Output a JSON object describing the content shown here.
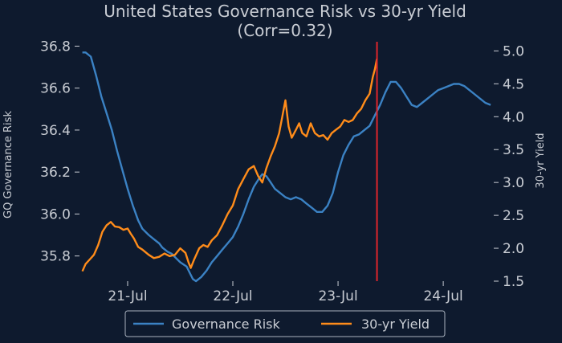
{
  "colors": {
    "background": "#0e1a2e",
    "text": "#c9cdd4",
    "governance": "#3b82c4",
    "yield": "#ff8c1a",
    "marker": "#e0252b",
    "legend_border": "#aab3bf"
  },
  "chart_data": {
    "type": "line",
    "title": "United States Governance Risk vs 30-yr Yield",
    "subtitle": "(Corr=0.32)",
    "ylabel_left": "GQ Governance Risk",
    "ylabel_right": "30-yr Yield",
    "x_ticks": [
      "21-Jul",
      "22-Jul",
      "23-Jul",
      "24-Jul"
    ],
    "x_tick_years": [
      2021,
      2022,
      2023,
      2024
    ],
    "x_range": [
      2020.55,
      2024.48
    ],
    "y_left_ticks": [
      "35.8",
      "36.0",
      "36.2",
      "36.4",
      "36.6",
      "36.8"
    ],
    "y_left_range": [
      35.68,
      36.84
    ],
    "y_right_ticks": [
      "1.5",
      "2.0",
      "2.5",
      "3.0",
      "3.5",
      "4.0",
      "4.5",
      "5.0"
    ],
    "y_right_range": [
      1.5,
      5.2
    ],
    "grid": false,
    "legend_placement": "bottom-center",
    "marker_x": 2023.37,
    "series": [
      {
        "name": "Governance Risk",
        "axis": "left",
        "points": [
          [
            2020.57,
            36.77
          ],
          [
            2020.6,
            36.77
          ],
          [
            2020.65,
            36.75
          ],
          [
            2020.7,
            36.66
          ],
          [
            2020.75,
            36.56
          ],
          [
            2020.8,
            36.48
          ],
          [
            2020.85,
            36.4
          ],
          [
            2020.9,
            36.3
          ],
          [
            2020.95,
            36.21
          ],
          [
            2021.0,
            36.12
          ],
          [
            2021.05,
            36.04
          ],
          [
            2021.1,
            35.97
          ],
          [
            2021.14,
            35.93
          ],
          [
            2021.2,
            35.9
          ],
          [
            2021.25,
            35.88
          ],
          [
            2021.3,
            35.86
          ],
          [
            2021.33,
            35.84
          ],
          [
            2021.38,
            35.82
          ],
          [
            2021.42,
            35.81
          ],
          [
            2021.46,
            35.79
          ],
          [
            2021.5,
            35.77
          ],
          [
            2021.53,
            35.76
          ],
          [
            2021.56,
            35.75
          ],
          [
            2021.59,
            35.72
          ],
          [
            2021.62,
            35.69
          ],
          [
            2021.65,
            35.68
          ],
          [
            2021.7,
            35.7
          ],
          [
            2021.75,
            35.73
          ],
          [
            2021.8,
            35.77
          ],
          [
            2021.85,
            35.8
          ],
          [
            2021.9,
            35.83
          ],
          [
            2021.95,
            35.86
          ],
          [
            2022.0,
            35.89
          ],
          [
            2022.05,
            35.94
          ],
          [
            2022.1,
            36.0
          ],
          [
            2022.15,
            36.07
          ],
          [
            2022.2,
            36.13
          ],
          [
            2022.25,
            36.17
          ],
          [
            2022.28,
            36.19
          ],
          [
            2022.32,
            36.18
          ],
          [
            2022.36,
            36.15
          ],
          [
            2022.4,
            36.12
          ],
          [
            2022.45,
            36.1
          ],
          [
            2022.5,
            36.08
          ],
          [
            2022.55,
            36.07
          ],
          [
            2022.6,
            36.08
          ],
          [
            2022.65,
            36.07
          ],
          [
            2022.7,
            36.05
          ],
          [
            2022.75,
            36.03
          ],
          [
            2022.8,
            36.01
          ],
          [
            2022.85,
            36.01
          ],
          [
            2022.9,
            36.04
          ],
          [
            2022.95,
            36.1
          ],
          [
            2023.0,
            36.2
          ],
          [
            2023.05,
            36.28
          ],
          [
            2023.1,
            36.33
          ],
          [
            2023.15,
            36.37
          ],
          [
            2023.2,
            36.38
          ],
          [
            2023.25,
            36.4
          ],
          [
            2023.3,
            36.42
          ],
          [
            2023.35,
            36.47
          ],
          [
            2023.4,
            36.52
          ],
          [
            2023.45,
            36.58
          ],
          [
            2023.5,
            36.63
          ],
          [
            2023.55,
            36.63
          ],
          [
            2023.6,
            36.6
          ],
          [
            2023.65,
            36.56
          ],
          [
            2023.7,
            36.52
          ],
          [
            2023.75,
            36.51
          ],
          [
            2023.8,
            36.53
          ],
          [
            2023.85,
            36.55
          ],
          [
            2023.9,
            36.57
          ],
          [
            2023.95,
            36.59
          ],
          [
            2024.0,
            36.6
          ],
          [
            2024.05,
            36.61
          ],
          [
            2024.1,
            36.62
          ],
          [
            2024.15,
            36.62
          ],
          [
            2024.2,
            36.61
          ],
          [
            2024.25,
            36.59
          ],
          [
            2024.3,
            36.57
          ],
          [
            2024.35,
            36.55
          ],
          [
            2024.4,
            36.53
          ],
          [
            2024.45,
            36.52
          ]
        ]
      },
      {
        "name": "30-yr Yield",
        "axis": "right",
        "points": [
          [
            2020.57,
            1.65
          ],
          [
            2020.6,
            1.76
          ],
          [
            2020.64,
            1.83
          ],
          [
            2020.68,
            1.9
          ],
          [
            2020.72,
            2.05
          ],
          [
            2020.76,
            2.25
          ],
          [
            2020.8,
            2.35
          ],
          [
            2020.84,
            2.4
          ],
          [
            2020.88,
            2.33
          ],
          [
            2020.92,
            2.32
          ],
          [
            2020.96,
            2.28
          ],
          [
            2021.0,
            2.3
          ],
          [
            2021.03,
            2.22
          ],
          [
            2021.06,
            2.15
          ],
          [
            2021.1,
            2.02
          ],
          [
            2021.14,
            1.98
          ],
          [
            2021.2,
            1.9
          ],
          [
            2021.25,
            1.85
          ],
          [
            2021.3,
            1.87
          ],
          [
            2021.35,
            1.92
          ],
          [
            2021.4,
            1.88
          ],
          [
            2021.45,
            1.9
          ],
          [
            2021.5,
            2.0
          ],
          [
            2021.55,
            1.93
          ],
          [
            2021.58,
            1.78
          ],
          [
            2021.6,
            1.7
          ],
          [
            2021.63,
            1.82
          ],
          [
            2021.68,
            2.0
          ],
          [
            2021.72,
            2.05
          ],
          [
            2021.76,
            2.02
          ],
          [
            2021.8,
            2.12
          ],
          [
            2021.85,
            2.2
          ],
          [
            2021.9,
            2.35
          ],
          [
            2021.95,
            2.52
          ],
          [
            2022.0,
            2.65
          ],
          [
            2022.05,
            2.9
          ],
          [
            2022.1,
            3.05
          ],
          [
            2022.15,
            3.2
          ],
          [
            2022.2,
            3.25
          ],
          [
            2022.24,
            3.1
          ],
          [
            2022.28,
            3.0
          ],
          [
            2022.32,
            3.22
          ],
          [
            2022.36,
            3.4
          ],
          [
            2022.4,
            3.55
          ],
          [
            2022.44,
            3.75
          ],
          [
            2022.47,
            4.0
          ],
          [
            2022.5,
            4.25
          ],
          [
            2022.53,
            3.85
          ],
          [
            2022.56,
            3.68
          ],
          [
            2022.6,
            3.8
          ],
          [
            2022.63,
            3.9
          ],
          [
            2022.66,
            3.75
          ],
          [
            2022.7,
            3.7
          ],
          [
            2022.74,
            3.9
          ],
          [
            2022.78,
            3.75
          ],
          [
            2022.82,
            3.7
          ],
          [
            2022.86,
            3.72
          ],
          [
            2022.9,
            3.65
          ],
          [
            2022.94,
            3.75
          ],
          [
            2022.98,
            3.8
          ],
          [
            2023.02,
            3.85
          ],
          [
            2023.06,
            3.95
          ],
          [
            2023.1,
            3.92
          ],
          [
            2023.14,
            3.95
          ],
          [
            2023.18,
            4.05
          ],
          [
            2023.22,
            4.12
          ],
          [
            2023.26,
            4.25
          ],
          [
            2023.3,
            4.35
          ],
          [
            2023.33,
            4.6
          ],
          [
            2023.35,
            4.72
          ],
          [
            2023.37,
            4.88
          ]
        ]
      }
    ]
  }
}
